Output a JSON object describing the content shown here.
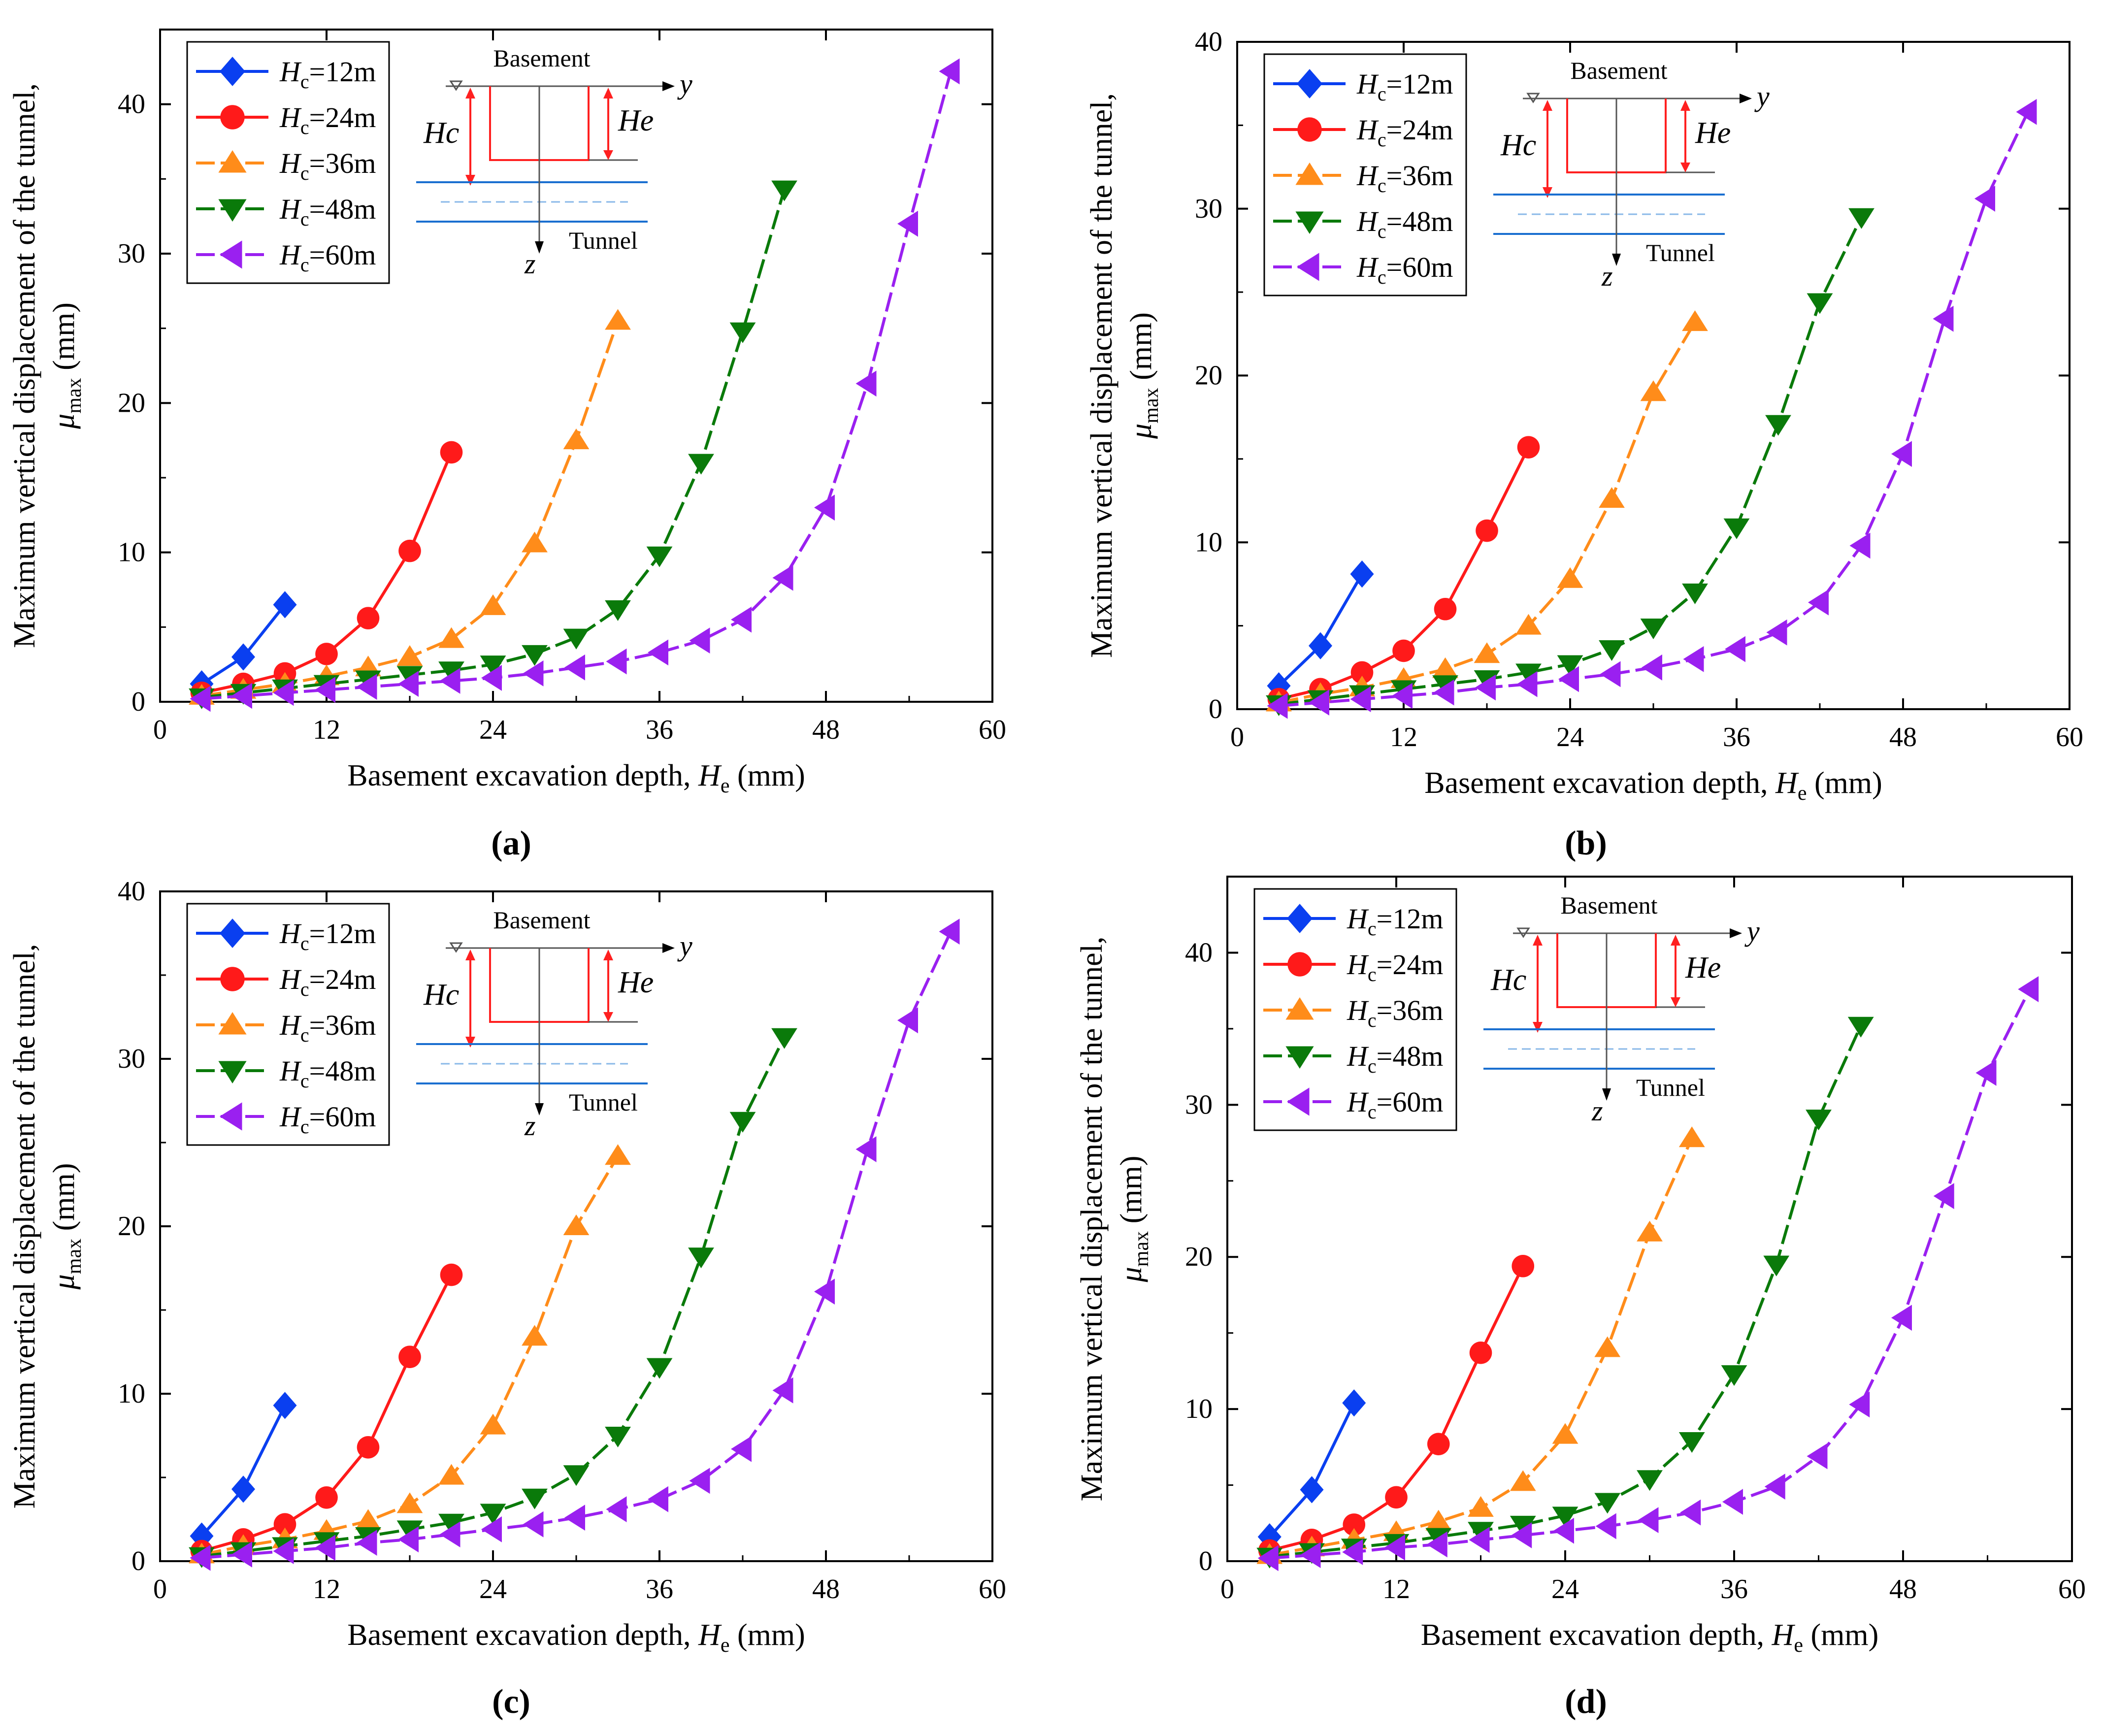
{
  "figure": {
    "colors": {
      "Hc=12m": "#0a3ff0",
      "Hc=24m": "#ff1a1a",
      "Hc=36m": "#ff8c1a",
      "Hc=48m": "#0a7a0a",
      "Hc=60m": "#9a20f0",
      "basement": "#ff2020",
      "tunnel": "#1a6fd0",
      "tunnel_dash": "#8ab8e8"
    }
  },
  "chart_data": [
    {
      "panel": "(a)",
      "type": "line",
      "xlabel": "Basement excavation depth, He (mm)",
      "xlabel_main": "Basement excavation depth, ",
      "xlabel_var": "H",
      "xlabel_sub": "e",
      "xlabel_unit": " (mm)",
      "ylabel_line1": "Maximum vertical displacement of the tunnel,",
      "ylabel_var": "μ",
      "ylabel_sub": "max",
      "ylabel_unit": " (mm)",
      "xlim": [
        0,
        60
      ],
      "ylim": [
        0,
        45
      ],
      "xticks": [
        0,
        12,
        24,
        36,
        48,
        60
      ],
      "yticks": [
        0,
        10,
        20,
        30,
        40
      ],
      "schematic": {
        "basement": "Basement",
        "tunnel": "Tunnel",
        "y": "y",
        "z": "z",
        "hc": "Hc",
        "he": "He"
      },
      "series": [
        {
          "name": "Hc=12m",
          "label_var": "H",
          "label_sub": "c",
          "label_val": "=12m",
          "marker": "diamond",
          "dash": "solid",
          "x": [
            3,
            6,
            9
          ],
          "y": [
            1.2,
            3.0,
            6.5
          ]
        },
        {
          "name": "Hc=24m",
          "label_var": "H",
          "label_sub": "c",
          "label_val": "=24m",
          "marker": "circle",
          "dash": "solid",
          "x": [
            3,
            6,
            9,
            12,
            15,
            18,
            21
          ],
          "y": [
            0.6,
            1.2,
            1.9,
            3.2,
            5.6,
            10.1,
            16.7
          ]
        },
        {
          "name": "Hc=36m",
          "label_var": "H",
          "label_sub": "c",
          "label_val": "=36m",
          "marker": "triangle-up",
          "dash": "dash",
          "x": [
            3,
            6,
            9,
            12,
            15,
            18,
            21,
            24,
            27,
            30,
            33
          ],
          "y": [
            0.4,
            0.8,
            1.2,
            1.7,
            2.3,
            3.0,
            4.2,
            6.4,
            10.6,
            17.5,
            25.5
          ]
        },
        {
          "name": "Hc=48m",
          "label_var": "H",
          "label_sub": "c",
          "label_val": "=48m",
          "marker": "triangle-down",
          "dash": "dash",
          "x": [
            3,
            6,
            9,
            12,
            15,
            18,
            21,
            24,
            27,
            30,
            33,
            36,
            39,
            42,
            45
          ],
          "y": [
            0.3,
            0.6,
            0.9,
            1.2,
            1.5,
            1.8,
            2.1,
            2.5,
            3.2,
            4.3,
            6.2,
            9.8,
            16.0,
            24.8,
            34.3
          ]
        },
        {
          "name": "Hc=60m",
          "label_var": "H",
          "label_sub": "c",
          "label_val": "=60m",
          "marker": "triangle-left",
          "dash": "dash",
          "x": [
            3,
            6,
            9,
            12,
            15,
            18,
            21,
            24,
            27,
            30,
            33,
            36,
            39,
            42,
            45,
            48,
            51,
            54,
            57
          ],
          "y": [
            0.2,
            0.4,
            0.6,
            0.8,
            1.0,
            1.2,
            1.4,
            1.6,
            1.9,
            2.3,
            2.7,
            3.3,
            4.1,
            5.5,
            8.3,
            13.0,
            21.3,
            32.0,
            42.2
          ]
        }
      ]
    },
    {
      "panel": "(b)",
      "type": "line",
      "xlabel": "Basement excavation depth, He (mm)",
      "xlabel_main": "Basement excavation depth, ",
      "xlabel_var": "H",
      "xlabel_sub": "e",
      "xlabel_unit": " (mm)",
      "ylabel_line1": "Maximum vertical displacement of the tunnel,",
      "ylabel_var": "μ",
      "ylabel_sub": "max",
      "ylabel_unit": " (mm)",
      "xlim": [
        0,
        60
      ],
      "ylim": [
        0,
        40
      ],
      "xticks": [
        0,
        12,
        24,
        36,
        48,
        60
      ],
      "yticks": [
        0,
        10,
        20,
        30,
        40
      ],
      "schematic": {
        "basement": "Basement",
        "tunnel": "Tunnel",
        "y": "y",
        "z": "z",
        "hc": "Hc",
        "he": "He"
      },
      "series": [
        {
          "name": "Hc=12m",
          "label_var": "H",
          "label_sub": "c",
          "label_val": "=12m",
          "marker": "diamond",
          "dash": "solid",
          "x": [
            3,
            6,
            9
          ],
          "y": [
            1.4,
            3.8,
            8.1
          ]
        },
        {
          "name": "Hc=24m",
          "label_var": "H",
          "label_sub": "c",
          "label_val": "=24m",
          "marker": "circle",
          "dash": "solid",
          "x": [
            3,
            6,
            9,
            12,
            15,
            18,
            21
          ],
          "y": [
            0.6,
            1.2,
            2.2,
            3.5,
            6.0,
            10.7,
            15.7
          ]
        },
        {
          "name": "Hc=36m",
          "label_var": "H",
          "label_sub": "c",
          "label_val": "=36m",
          "marker": "triangle-up",
          "dash": "dash",
          "x": [
            3,
            6,
            9,
            12,
            15,
            18,
            21,
            24,
            27,
            30,
            33
          ],
          "y": [
            0.4,
            0.9,
            1.3,
            1.8,
            2.4,
            3.3,
            5.0,
            7.8,
            12.6,
            19.0,
            23.2
          ]
        },
        {
          "name": "Hc=48m",
          "label_var": "H",
          "label_sub": "c",
          "label_val": "=48m",
          "marker": "triangle-down",
          "dash": "dash",
          "x": [
            3,
            6,
            9,
            12,
            15,
            18,
            21,
            24,
            27,
            30,
            33,
            36,
            39,
            42,
            45
          ],
          "y": [
            0.3,
            0.6,
            0.9,
            1.2,
            1.5,
            1.8,
            2.2,
            2.7,
            3.6,
            4.9,
            7.0,
            10.9,
            17.1,
            24.4,
            29.5
          ]
        },
        {
          "name": "Hc=60m",
          "label_var": "H",
          "label_sub": "c",
          "label_val": "=60m",
          "marker": "triangle-left",
          "dash": "dash",
          "x": [
            3,
            6,
            9,
            12,
            15,
            18,
            21,
            24,
            27,
            30,
            33,
            36,
            39,
            42,
            45,
            48,
            51,
            54,
            57
          ],
          "y": [
            0.2,
            0.4,
            0.6,
            0.8,
            1.0,
            1.3,
            1.5,
            1.8,
            2.1,
            2.5,
            3.0,
            3.6,
            4.6,
            6.4,
            9.8,
            15.3,
            23.4,
            30.6,
            35.8
          ]
        }
      ]
    },
    {
      "panel": "(c)",
      "type": "line",
      "xlabel": "Basement excavation depth, He (mm)",
      "xlabel_main": "Basement excavation depth, ",
      "xlabel_var": "H",
      "xlabel_sub": "e",
      "xlabel_unit": " (mm)",
      "ylabel_line1": "Maximum vertical displacement of the tunnel,",
      "ylabel_var": "μ",
      "ylabel_sub": "max",
      "ylabel_unit": " (mm)",
      "xlim": [
        0,
        60
      ],
      "ylim": [
        0,
        40
      ],
      "xticks": [
        0,
        12,
        24,
        36,
        48,
        60
      ],
      "yticks": [
        0,
        10,
        20,
        30,
        40
      ],
      "schematic": {
        "basement": "Basement",
        "tunnel": "Tunnel",
        "y": "y",
        "z": "z",
        "hc": "Hc",
        "he": "He"
      },
      "series": [
        {
          "name": "Hc=12m",
          "label_var": "H",
          "label_sub": "c",
          "label_val": "=12m",
          "marker": "diamond",
          "dash": "solid",
          "x": [
            3,
            6,
            9
          ],
          "y": [
            1.5,
            4.3,
            9.3
          ]
        },
        {
          "name": "Hc=24m",
          "label_var": "H",
          "label_sub": "c",
          "label_val": "=24m",
          "marker": "circle",
          "dash": "solid",
          "x": [
            3,
            6,
            9,
            12,
            15,
            18,
            21
          ],
          "y": [
            0.6,
            1.3,
            2.2,
            3.8,
            6.8,
            12.2,
            17.1
          ]
        },
        {
          "name": "Hc=36m",
          "label_var": "H",
          "label_sub": "c",
          "label_val": "=36m",
          "marker": "triangle-up",
          "dash": "dash",
          "x": [
            3,
            6,
            9,
            12,
            15,
            18,
            21,
            24,
            27,
            30,
            33
          ],
          "y": [
            0.4,
            0.9,
            1.3,
            1.8,
            2.4,
            3.4,
            5.1,
            8.1,
            13.4,
            20.0,
            24.2
          ]
        },
        {
          "name": "Hc=48m",
          "label_var": "H",
          "label_sub": "c",
          "label_val": "=48m",
          "marker": "triangle-down",
          "dash": "dash",
          "x": [
            3,
            6,
            9,
            12,
            15,
            18,
            21,
            24,
            27,
            30,
            33,
            36,
            39,
            42,
            45
          ],
          "y": [
            0.3,
            0.6,
            0.9,
            1.2,
            1.5,
            1.9,
            2.3,
            2.9,
            3.8,
            5.2,
            7.5,
            11.6,
            18.2,
            26.3,
            31.3
          ]
        },
        {
          "name": "Hc=60m",
          "label_var": "H",
          "label_sub": "c",
          "label_val": "=60m",
          "marker": "triangle-left",
          "dash": "dash",
          "x": [
            3,
            6,
            9,
            12,
            15,
            18,
            21,
            24,
            27,
            30,
            33,
            36,
            39,
            42,
            45,
            48,
            51,
            54,
            57
          ],
          "y": [
            0.2,
            0.4,
            0.6,
            0.8,
            1.1,
            1.3,
            1.6,
            1.9,
            2.2,
            2.6,
            3.1,
            3.7,
            4.8,
            6.7,
            10.2,
            16.1,
            24.6,
            32.3,
            37.6
          ]
        }
      ]
    },
    {
      "panel": "(d)",
      "type": "line",
      "xlabel": "Basement excavation depth, He (mm)",
      "xlabel_main": "Basement excavation depth, ",
      "xlabel_var": "H",
      "xlabel_sub": "e",
      "xlabel_unit": " (mm)",
      "ylabel_line1": "Maximum vertical displacement of the tunnel,",
      "ylabel_var": "μ",
      "ylabel_sub": "max",
      "ylabel_unit": "  (mm)",
      "xlim": [
        0,
        60
      ],
      "ylim": [
        0,
        45
      ],
      "xticks": [
        0,
        12,
        24,
        36,
        48,
        60
      ],
      "yticks": [
        0,
        10,
        20,
        30,
        40
      ],
      "schematic": {
        "basement": "Basement",
        "tunnel": "Tunnel",
        "y": "y",
        "z": "z",
        "hc": "Hc",
        "he": "He"
      },
      "series": [
        {
          "name": "Hc=12m",
          "label_var": "H",
          "label_sub": "c",
          "label_val": "=12m",
          "marker": "diamond",
          "dash": "solid",
          "x": [
            3,
            6,
            9
          ],
          "y": [
            1.6,
            4.7,
            10.4
          ]
        },
        {
          "name": "Hc=24m",
          "label_var": "H",
          "label_sub": "c",
          "label_val": "=24m",
          "marker": "circle",
          "dash": "solid",
          "x": [
            3,
            6,
            9,
            12,
            15,
            18,
            21
          ],
          "y": [
            0.7,
            1.4,
            2.4,
            4.2,
            7.7,
            13.7,
            19.4
          ]
        },
        {
          "name": "Hc=36m",
          "label_var": "H",
          "label_sub": "c",
          "label_val": "=36m",
          "marker": "triangle-up",
          "dash": "dash",
          "x": [
            3,
            6,
            9,
            12,
            15,
            18,
            21,
            24,
            27,
            30,
            33
          ],
          "y": [
            0.4,
            0.9,
            1.4,
            1.9,
            2.6,
            3.5,
            5.2,
            8.3,
            14.0,
            21.6,
            27.8
          ]
        },
        {
          "name": "Hc=48m",
          "label_var": "H",
          "label_sub": "c",
          "label_val": "=48m",
          "marker": "triangle-down",
          "dash": "dash",
          "x": [
            3,
            6,
            9,
            12,
            15,
            18,
            21,
            24,
            27,
            30,
            33,
            36,
            39,
            42,
            45
          ],
          "y": [
            0.3,
            0.6,
            0.9,
            1.2,
            1.6,
            2.0,
            2.4,
            3.0,
            3.9,
            5.4,
            7.9,
            12.3,
            19.5,
            29.1,
            35.2
          ]
        },
        {
          "name": "Hc=60m",
          "label_var": "H",
          "label_sub": "c",
          "label_val": "=60m",
          "marker": "triangle-left",
          "dash": "dash",
          "x": [
            3,
            6,
            9,
            12,
            15,
            18,
            21,
            24,
            27,
            30,
            33,
            36,
            39,
            42,
            45,
            48,
            51,
            54,
            57
          ],
          "y": [
            0.2,
            0.4,
            0.6,
            0.9,
            1.1,
            1.4,
            1.7,
            2.0,
            2.3,
            2.7,
            3.2,
            3.9,
            4.9,
            6.9,
            10.3,
            16.0,
            24.0,
            32.1,
            37.6
          ]
        }
      ]
    }
  ]
}
